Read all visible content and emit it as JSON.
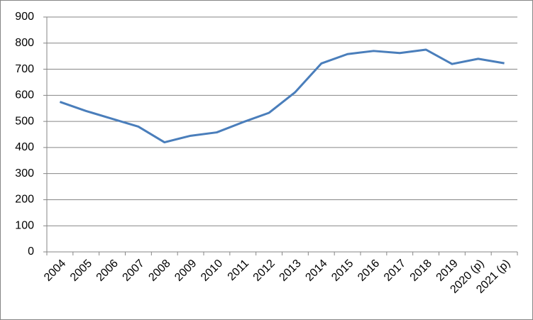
{
  "chart_data": {
    "type": "line",
    "categories": [
      "2004",
      "2005",
      "2006",
      "2007",
      "2008",
      "2009",
      "2010",
      "2011",
      "2012",
      "2013",
      "2014",
      "2015",
      "2016",
      "2017",
      "2018",
      "2019",
      "2020 (p)",
      "2021 (p)"
    ],
    "series": [
      {
        "name": null,
        "color": "#4a7ebb",
        "values": [
          575,
          540,
          510,
          480,
          420,
          445,
          458,
          497,
          533,
          612,
          722,
          758,
          770,
          762,
          775,
          720,
          740,
          723
        ]
      }
    ],
    "ylim": [
      0,
      900
    ],
    "yticks": [
      0,
      100,
      200,
      300,
      400,
      500,
      600,
      700,
      800,
      900
    ],
    "grid": true
  }
}
